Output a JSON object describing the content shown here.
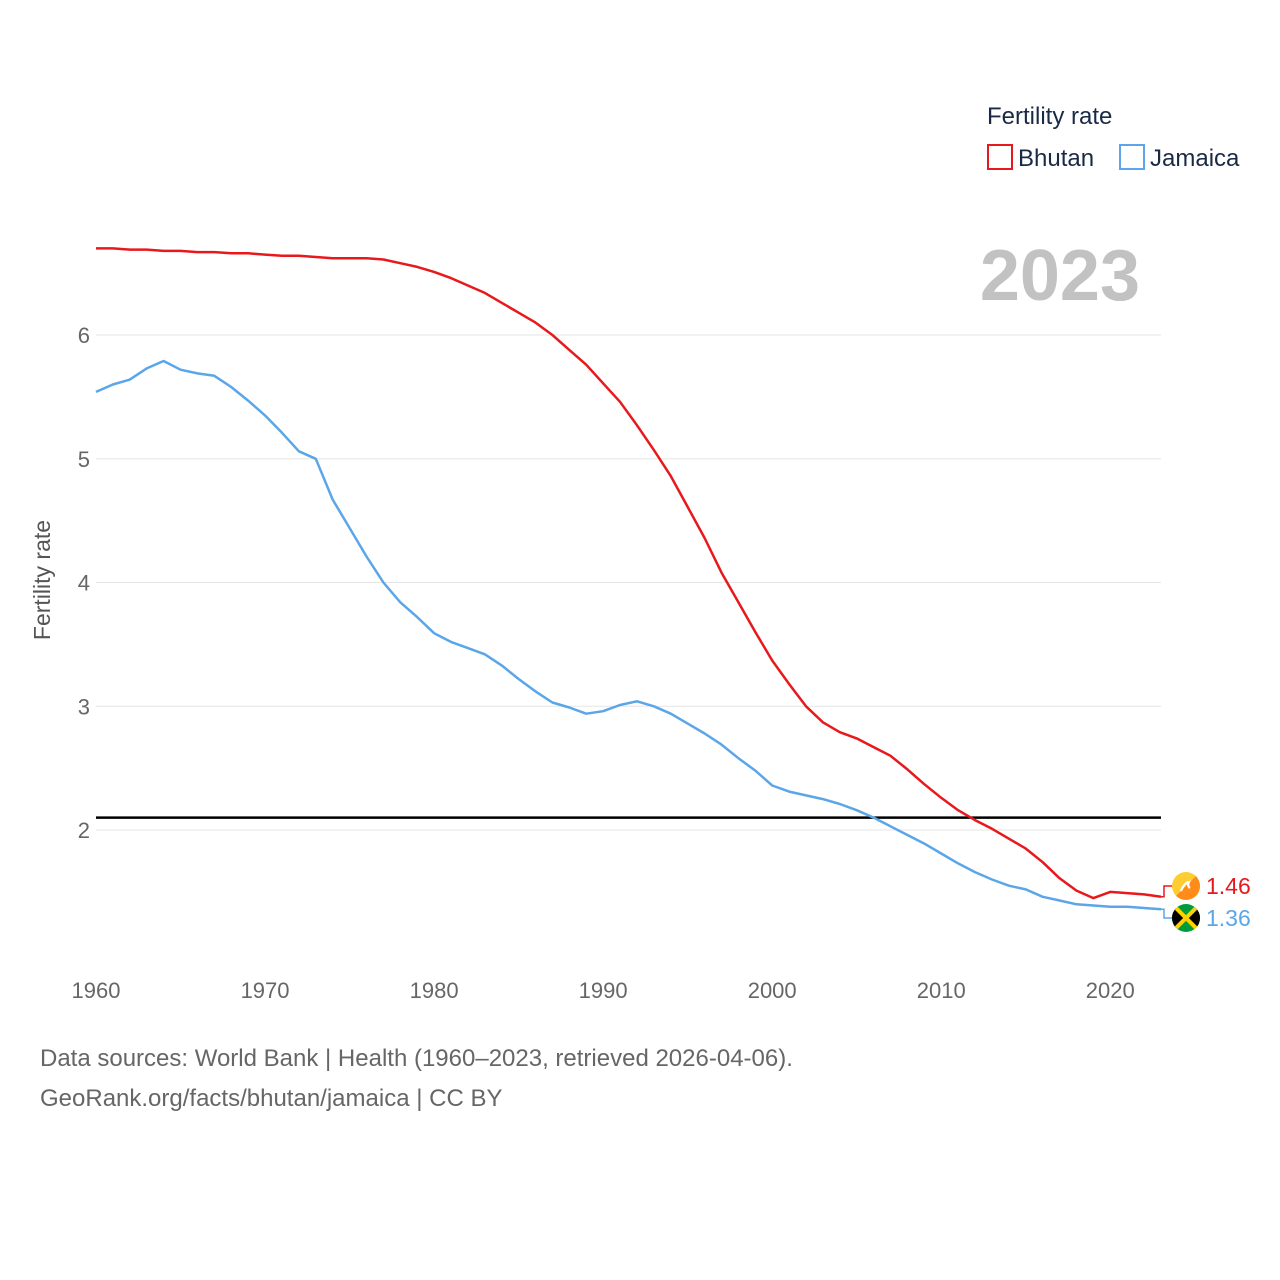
{
  "chart_data": {
    "type": "line",
    "ylabel": "Fertility rate",
    "xlabel": "",
    "xlim": [
      1960,
      2023
    ],
    "ylim": [
      1.0,
      6.8
    ],
    "yticks": [
      2,
      3,
      4,
      5,
      6
    ],
    "xticks": [
      1960,
      1970,
      1980,
      1990,
      2000,
      2010,
      2020
    ],
    "reference_line": 2.1,
    "current_year": "2023",
    "legend": {
      "title": "Fertility rate",
      "placement": "top-right"
    },
    "series": [
      {
        "name": "Bhutan",
        "color": "#e8191c",
        "end_label": "1.46",
        "flag_icon": "bhutan-flag-icon",
        "x": [
          1960,
          1961,
          1962,
          1963,
          1964,
          1965,
          1966,
          1967,
          1968,
          1969,
          1970,
          1971,
          1972,
          1973,
          1974,
          1975,
          1976,
          1977,
          1978,
          1979,
          1980,
          1981,
          1982,
          1983,
          1984,
          1985,
          1986,
          1987,
          1988,
          1989,
          1990,
          1991,
          1992,
          1993,
          1994,
          1995,
          1996,
          1997,
          1998,
          1999,
          2000,
          2001,
          2002,
          2003,
          2004,
          2005,
          2006,
          2007,
          2008,
          2009,
          2010,
          2011,
          2012,
          2013,
          2014,
          2015,
          2016,
          2017,
          2018,
          2019,
          2020,
          2021,
          2022,
          2023
        ],
        "values": [
          6.7,
          6.7,
          6.69,
          6.69,
          6.68,
          6.68,
          6.67,
          6.67,
          6.66,
          6.66,
          6.65,
          6.64,
          6.64,
          6.63,
          6.62,
          6.62,
          6.62,
          6.61,
          6.58,
          6.55,
          6.51,
          6.46,
          6.4,
          6.34,
          6.26,
          6.18,
          6.1,
          6.0,
          5.88,
          5.76,
          5.61,
          5.46,
          5.27,
          5.07,
          4.86,
          4.61,
          4.36,
          4.08,
          3.84,
          3.6,
          3.37,
          3.18,
          3.0,
          2.87,
          2.79,
          2.74,
          2.67,
          2.6,
          2.49,
          2.37,
          2.26,
          2.16,
          2.08,
          2.01,
          1.93,
          1.85,
          1.74,
          1.61,
          1.51,
          1.45,
          1.5,
          1.49,
          1.48,
          1.46
        ]
      },
      {
        "name": "Jamaica",
        "color": "#5aa6e8",
        "end_label": "1.36",
        "flag_icon": "jamaica-flag-icon",
        "x": [
          1960,
          1961,
          1962,
          1963,
          1964,
          1965,
          1966,
          1967,
          1968,
          1969,
          1970,
          1971,
          1972,
          1973,
          1974,
          1975,
          1976,
          1977,
          1978,
          1979,
          1980,
          1981,
          1982,
          1983,
          1984,
          1985,
          1986,
          1987,
          1988,
          1989,
          1990,
          1991,
          1992,
          1993,
          1994,
          1995,
          1996,
          1997,
          1998,
          1999,
          2000,
          2001,
          2002,
          2003,
          2004,
          2005,
          2006,
          2007,
          2008,
          2009,
          2010,
          2011,
          2012,
          2013,
          2014,
          2015,
          2016,
          2017,
          2018,
          2019,
          2020,
          2021,
          2022,
          2023
        ],
        "values": [
          5.54,
          5.6,
          5.64,
          5.73,
          5.79,
          5.72,
          5.69,
          5.67,
          5.58,
          5.47,
          5.35,
          5.21,
          5.06,
          5.0,
          4.67,
          4.44,
          4.21,
          4.0,
          3.84,
          3.72,
          3.59,
          3.52,
          3.47,
          3.42,
          3.33,
          3.22,
          3.12,
          3.03,
          2.99,
          2.94,
          2.96,
          3.01,
          3.04,
          3.0,
          2.94,
          2.86,
          2.78,
          2.69,
          2.58,
          2.48,
          2.36,
          2.31,
          2.28,
          2.25,
          2.21,
          2.16,
          2.1,
          2.03,
          1.96,
          1.89,
          1.81,
          1.73,
          1.66,
          1.6,
          1.55,
          1.52,
          1.46,
          1.43,
          1.4,
          1.39,
          1.38,
          1.38,
          1.37,
          1.36
        ]
      }
    ]
  },
  "footer": {
    "source_line": "Data sources: World Bank | Health (1960–2023, retrieved 2026-04-06).",
    "credit_line": "GeoRank.org/facts/bhutan/jamaica | CC BY"
  }
}
